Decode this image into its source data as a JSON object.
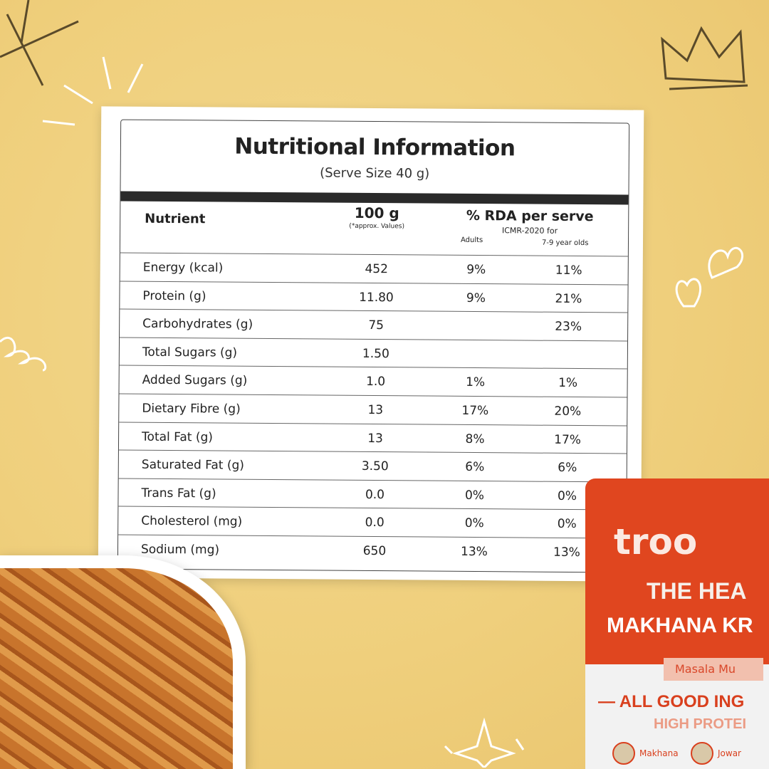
{
  "label": {
    "title": "Nutritional Information",
    "subtitle": "(Serve Size 40 g)",
    "headers": {
      "nutrient": "Nutrient",
      "per100": "100 g",
      "per100_note": "(*approx. Values)",
      "rda": "% RDA per serve",
      "rda_note": "ICMR-2020 for",
      "adults": "Adults",
      "kids": "7-9 year olds"
    },
    "rows": [
      {
        "nutrient": "Energy (kcal)",
        "per100": "452",
        "adults": "9%",
        "kids": "11%"
      },
      {
        "nutrient": "Protein (g)",
        "per100": "11.80",
        "adults": "9%",
        "kids": "21%"
      },
      {
        "nutrient": "Carbohydrates (g)",
        "per100": "75",
        "adults": "",
        "kids": "23%"
      },
      {
        "nutrient": "Total Sugars (g)",
        "per100": "1.50",
        "adults": "",
        "kids": ""
      },
      {
        "nutrient": "Added Sugars (g)",
        "per100": "1.0",
        "adults": "1%",
        "kids": "1%"
      },
      {
        "nutrient": "Dietary Fibre (g)",
        "per100": "13",
        "adults": "17%",
        "kids": "20%"
      },
      {
        "nutrient": "Total Fat (g)",
        "per100": "13",
        "adults": "8%",
        "kids": "17%"
      },
      {
        "nutrient": "Saturated Fat (g)",
        "per100": "3.50",
        "adults": "6%",
        "kids": "6%"
      },
      {
        "nutrient": "Trans Fat (g)",
        "per100": "0.0",
        "adults": "0%",
        "kids": "0%"
      },
      {
        "nutrient": "Cholesterol (mg)",
        "per100": "0.0",
        "adults": "0%",
        "kids": "0%"
      },
      {
        "nutrient": "Sodium (mg)",
        "per100": "650",
        "adults": "13%",
        "kids": "13%"
      }
    ]
  },
  "pack": {
    "brand": "troo",
    "line1": "THE HEA",
    "line2": "MAKHANA KR",
    "flavour": "Masala Mu",
    "tagline": "— ALL GOOD ING",
    "subtag": "HIGH PROTEI",
    "ingredients": [
      "Makhana",
      "Jowar"
    ],
    "color": "#e0461f"
  },
  "colors": {
    "background": "#efcf7c",
    "table_bar": "#2a2a2a"
  }
}
